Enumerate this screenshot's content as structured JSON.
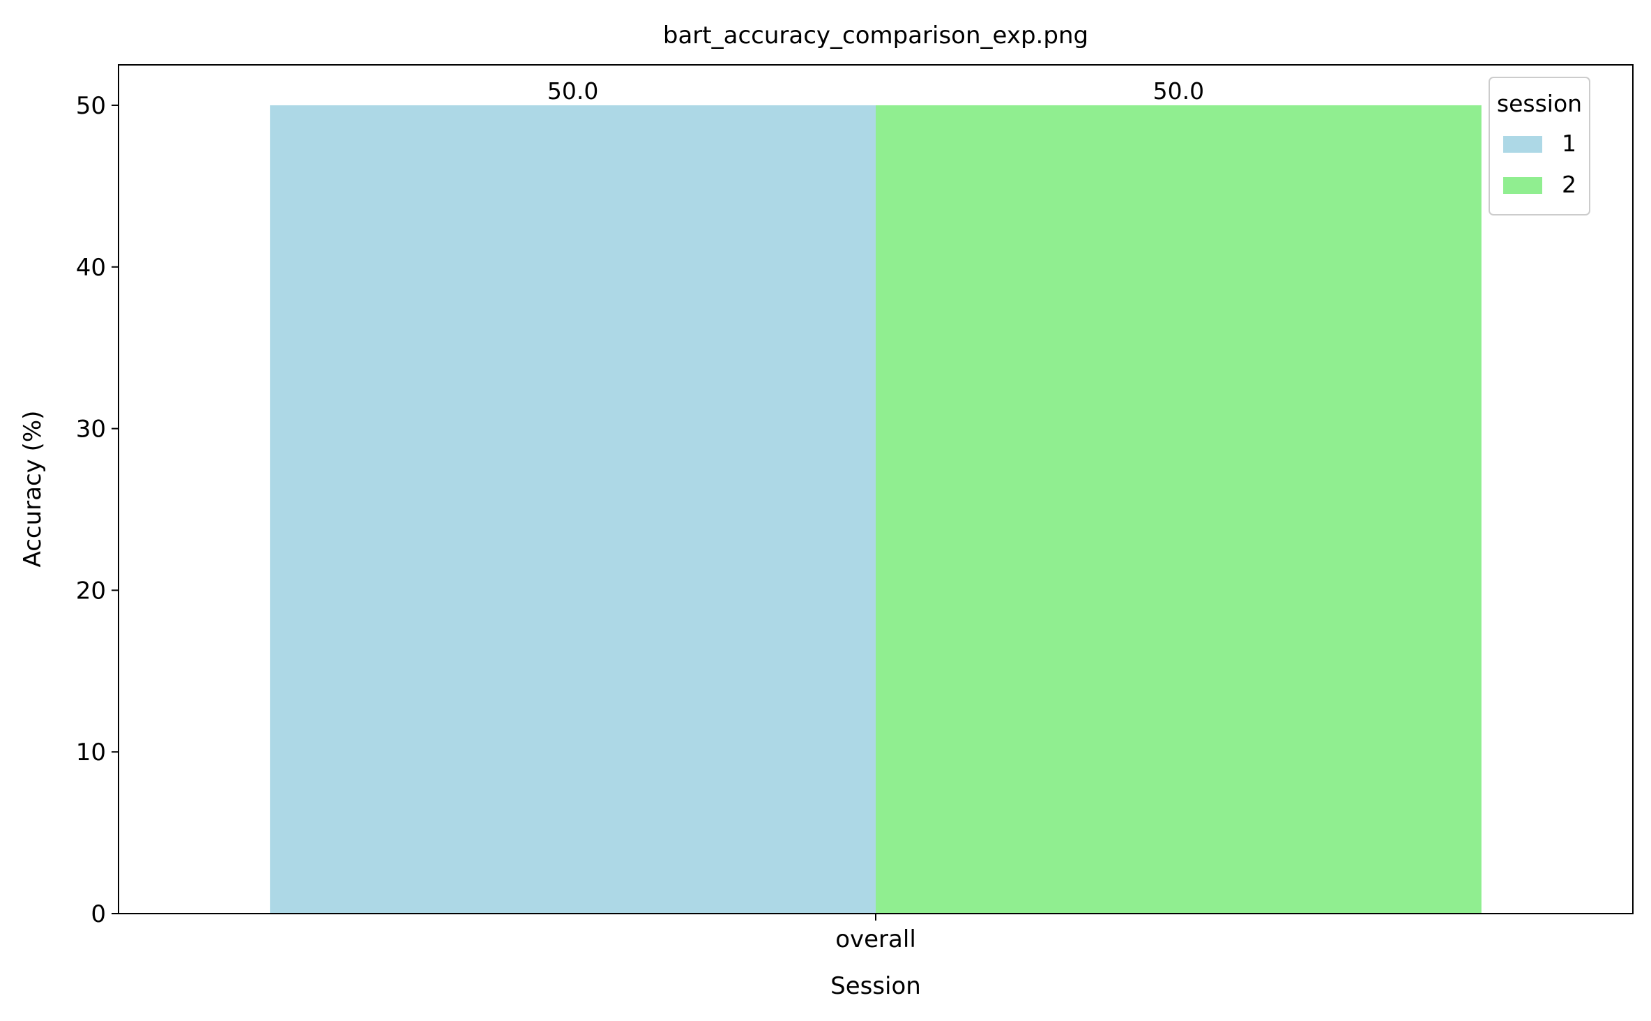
{
  "chart_data": {
    "type": "bar",
    "title": "bart_accuracy_comparison_exp.png",
    "xlabel": "Session",
    "ylabel": "Accuracy (%)",
    "categories": [
      "overall"
    ],
    "series": [
      {
        "name": "1",
        "values": [
          50.0
        ],
        "color": "#add8e6",
        "value_label": "50.0"
      },
      {
        "name": "2",
        "values": [
          50.0
        ],
        "color": "#90ee90",
        "value_label": "50.0"
      }
    ],
    "ylim": [
      0,
      52.5
    ],
    "yticks": [
      0,
      10,
      20,
      30,
      40,
      50
    ],
    "grid": false,
    "legend": {
      "title": "session",
      "placement": "top-right"
    }
  }
}
